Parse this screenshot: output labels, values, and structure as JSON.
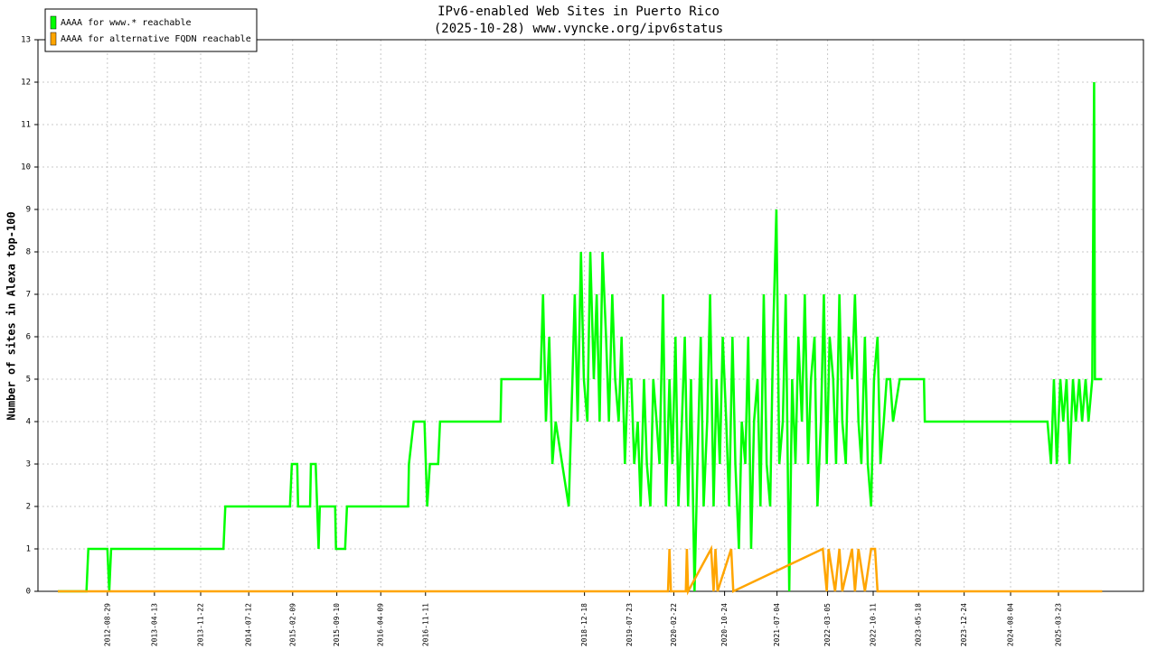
{
  "chart_data": {
    "type": "line",
    "title": "IPv6-enabled Web Sites in Puerto Rico",
    "subtitle": "(2025-10-28) www.vyncke.org/ipv6status",
    "ylabel": "Number of sites in Alexa top-100",
    "xlim": [
      "2011-09-29",
      "2026-05-07"
    ],
    "ylim": [
      0,
      13
    ],
    "yticks": [
      0,
      1,
      2,
      3,
      4,
      5,
      6,
      7,
      8,
      9,
      10,
      11,
      12,
      13
    ],
    "xticks": [
      "2012-08-29",
      "2013-04-13",
      "2013-11-22",
      "2014-07-12",
      "2015-02-09",
      "2015-09-10",
      "2016-04-09",
      "2016-11-11",
      "2018-12-18",
      "2019-07-23",
      "2020-02-22",
      "2020-10-24",
      "2021-07-04",
      "2022-03-05",
      "2022-10-11",
      "2023-05-18",
      "2023-12-24",
      "2024-08-04",
      "2025-03-23"
    ],
    "grid": true,
    "legend": "upper left",
    "series": [
      {
        "name": "AAAA for www.* reachable",
        "color": "#00ff00",
        "x": [
          "2012-01-03",
          "2012-05-20",
          "2012-05-29",
          "2012-08-29",
          "2012-09-07",
          "2012-09-16",
          "2014-03-12",
          "2014-03-21",
          "2015-01-27",
          "2015-02-05",
          "2015-03-03",
          "2015-03-07",
          "2015-05-04",
          "2015-05-08",
          "2015-05-31",
          "2015-06-14",
          "2015-06-20",
          "2015-09-02",
          "2015-09-06",
          "2015-10-20",
          "2015-10-29",
          "2016-08-19",
          "2016-08-23",
          "2016-09-15",
          "2016-11-06",
          "2016-11-19",
          "2016-12-02",
          "2017-01-11",
          "2017-01-20",
          "2017-11-08",
          "2017-11-12",
          "2018-05-20",
          "2018-06-01",
          "2018-06-15",
          "2018-07-01",
          "2018-07-16",
          "2018-08-01",
          "2018-10-03",
          "2018-10-21",
          "2018-11-01",
          "2018-11-15",
          "2018-12-01",
          "2018-12-15",
          "2019-01-01",
          "2019-01-15",
          "2019-02-01",
          "2019-02-15",
          "2019-03-01",
          "2019-03-15",
          "2019-04-01",
          "2019-04-15",
          "2019-05-01",
          "2019-05-15",
          "2019-06-01",
          "2019-06-15",
          "2019-07-01",
          "2019-07-15",
          "2019-08-01",
          "2019-08-15",
          "2019-09-01",
          "2019-09-15",
          "2019-10-01",
          "2019-10-15",
          "2019-11-01",
          "2019-11-15",
          "2019-12-01",
          "2019-12-15",
          "2020-01-01",
          "2020-01-15",
          "2020-02-01",
          "2020-02-15",
          "2020-03-01",
          "2020-03-15",
          "2020-04-01",
          "2020-04-15",
          "2020-05-01",
          "2020-05-15",
          "2020-06-01",
          "2020-06-15",
          "2020-07-01",
          "2020-07-15",
          "2020-08-01",
          "2020-08-15",
          "2020-09-01",
          "2020-09-15",
          "2020-10-01",
          "2020-10-15",
          "2020-11-01",
          "2020-11-15",
          "2020-12-01",
          "2020-12-15",
          "2021-01-01",
          "2021-01-15",
          "2021-02-01",
          "2021-02-15",
          "2021-03-01",
          "2021-03-15",
          "2021-04-01",
          "2021-04-15",
          "2021-05-01",
          "2021-05-15",
          "2021-06-01",
          "2021-06-15",
          "2021-07-01",
          "2021-07-15",
          "2021-08-01",
          "2021-08-15",
          "2021-09-01",
          "2021-09-15",
          "2021-10-01",
          "2021-10-15",
          "2021-11-01",
          "2021-11-15",
          "2021-12-01",
          "2021-12-15",
          "2022-01-01",
          "2022-01-15",
          "2022-02-01",
          "2022-02-15",
          "2022-03-01",
          "2022-03-15",
          "2022-04-01",
          "2022-04-15",
          "2022-05-01",
          "2022-05-15",
          "2022-06-01",
          "2022-06-15",
          "2022-07-01",
          "2022-07-15",
          "2022-08-01",
          "2022-08-15",
          "2022-09-01",
          "2022-09-15",
          "2022-10-01",
          "2022-10-15",
          "2022-11-01",
          "2022-11-15",
          "2022-12-01",
          "2022-12-15",
          "2023-01-01",
          "2023-01-15",
          "2023-02-16",
          "2023-06-13",
          "2023-06-17",
          "2025-01-29",
          "2025-02-15",
          "2025-03-01",
          "2025-03-15",
          "2025-04-01",
          "2025-04-15",
          "2025-05-01",
          "2025-05-15",
          "2025-06-01",
          "2025-06-15",
          "2025-07-01",
          "2025-07-15",
          "2025-08-01",
          "2025-08-15",
          "2025-09-02",
          "2025-09-11",
          "2025-09-15",
          "2025-10-20"
        ],
        "values": [
          0,
          0,
          1,
          1,
          0,
          1,
          1,
          2,
          2,
          3,
          3,
          2,
          2,
          3,
          3,
          1,
          2,
          2,
          1,
          1,
          2,
          2,
          3,
          4,
          4,
          2,
          3,
          3,
          4,
          4,
          5,
          5,
          7,
          4,
          6,
          3,
          4,
          2,
          5,
          7,
          4,
          8,
          5,
          4,
          8,
          5,
          7,
          4,
          8,
          6,
          4,
          7,
          5,
          4,
          6,
          3,
          5,
          5,
          3,
          4,
          2,
          5,
          3,
          2,
          5,
          4,
          3,
          7,
          2,
          5,
          3,
          6,
          2,
          4,
          6,
          2,
          5,
          0,
          3,
          6,
          2,
          4,
          7,
          2,
          5,
          3,
          6,
          4,
          2,
          6,
          3,
          1,
          4,
          3,
          6,
          1,
          4,
          5,
          2,
          7,
          3,
          2,
          6,
          9,
          3,
          4,
          7,
          0,
          5,
          3,
          6,
          4,
          7,
          3,
          5,
          6,
          2,
          4,
          7,
          3,
          6,
          5,
          3,
          7,
          4,
          3,
          6,
          5,
          7,
          4,
          3,
          6,
          3,
          2,
          5,
          6,
          3,
          4,
          5,
          5,
          4,
          5,
          5,
          4,
          4,
          3,
          5,
          3,
          5,
          4,
          5,
          3,
          5,
          4,
          5,
          4,
          5,
          4,
          5,
          12,
          5,
          5
        ]
      },
      {
        "name": "AAAA for alternative FQDN reachable",
        "color": "#ffa500",
        "x": [
          "2012-01-03",
          "2020-01-25",
          "2020-02-01",
          "2020-02-08",
          "2020-04-20",
          "2020-04-25",
          "2020-05-01",
          "2020-08-20",
          "2020-09-01",
          "2020-09-10",
          "2020-09-20",
          "2020-11-25",
          "2020-12-05",
          "2022-02-10",
          "2022-03-01",
          "2022-03-10",
          "2022-04-10",
          "2022-05-01",
          "2022-05-15",
          "2022-07-01",
          "2022-07-15",
          "2022-08-01",
          "2022-09-01",
          "2022-10-01",
          "2022-10-20",
          "2022-11-01",
          "2025-10-20"
        ],
        "values": [
          0,
          0,
          1,
          0,
          0,
          1,
          0,
          1,
          0,
          1,
          0,
          1,
          0,
          1,
          0,
          1,
          0,
          1,
          0,
          1,
          0,
          1,
          0,
          1,
          1,
          0,
          0
        ]
      }
    ]
  }
}
